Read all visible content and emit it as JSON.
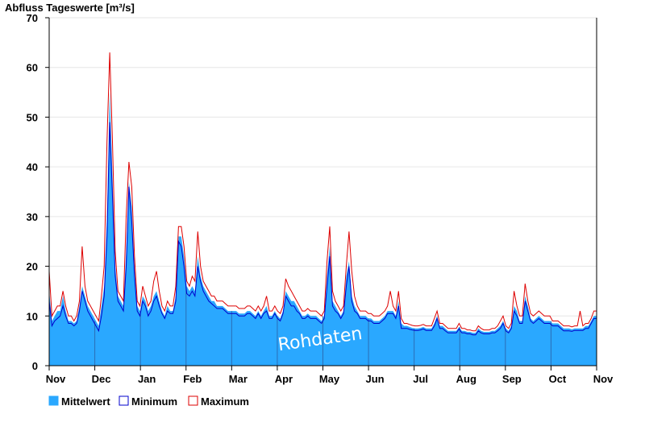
{
  "chart_data": {
    "type": "area",
    "title": "Abfluss Tageswerte [m³/s]",
    "watermark": "Rohdaten",
    "ylim": [
      0,
      70
    ],
    "yticks": [
      0,
      10,
      20,
      30,
      40,
      50,
      60,
      70
    ],
    "grid": true,
    "legend_placement": "bottom-left",
    "x_start": "Nov 1",
    "x_end": "Nov 1",
    "months": [
      "Nov",
      "Dec",
      "Jan",
      "Feb",
      "Mar",
      "Apr",
      "May",
      "Jun",
      "Jul",
      "Aug",
      "Sep",
      "Oct",
      "Nov"
    ],
    "colors": {
      "mittelwert": "#2aa8ff",
      "minimum": "#0000cc",
      "maximum": "#dd0000",
      "grid": "#e6e6e6"
    },
    "series": [
      {
        "name": "Mittelwert",
        "values": [
          15,
          9,
          10,
          11,
          11,
          14,
          11,
          9,
          9,
          8.5,
          9,
          12,
          16,
          14,
          12,
          11,
          10,
          9,
          8,
          12,
          16,
          30,
          55,
          38,
          20,
          14,
          13,
          12,
          23,
          37,
          32,
          20,
          12,
          11,
          14,
          13,
          11,
          12,
          14,
          15,
          13,
          11,
          10,
          12,
          11,
          11,
          14,
          26,
          26,
          22,
          16,
          15,
          16,
          15,
          22,
          18,
          16,
          15,
          14,
          13,
          13,
          12,
          12,
          12,
          11.5,
          11,
          11,
          11,
          11,
          10.5,
          10.5,
          10.5,
          11,
          11,
          10.5,
          10,
          11,
          10,
          11,
          12,
          10,
          10,
          11,
          10,
          9.5,
          11,
          15,
          14,
          13,
          13,
          12,
          11,
          10,
          10,
          10.5,
          10,
          10,
          10,
          9.5,
          9,
          10,
          18,
          24,
          13,
          12,
          11,
          10,
          11,
          18,
          21,
          14,
          12,
          11,
          10,
          10,
          10,
          9.5,
          9.5,
          9,
          9,
          9,
          9.5,
          10,
          11,
          11,
          11,
          10,
          13,
          8.5,
          8,
          8,
          7.8,
          7.6,
          7.5,
          7.5,
          7.6,
          7.8,
          7.5,
          7.5,
          7.5,
          8.5,
          10,
          8,
          8,
          7.5,
          7,
          7,
          7,
          7,
          7.8,
          7,
          7,
          6.8,
          6.8,
          6.6,
          6.6,
          7.5,
          7,
          6.8,
          6.8,
          6.8,
          7,
          7,
          7.5,
          8,
          9,
          7.5,
          7,
          8,
          12,
          11,
          9,
          9,
          14,
          12,
          9.5,
          9,
          9.5,
          10,
          9.5,
          9,
          9,
          9,
          8.5,
          8.5,
          8.5,
          8,
          7.5,
          7.5,
          7.5,
          7.3,
          7.5,
          7.5,
          7.5,
          7.5,
          8,
          8,
          9,
          10,
          10
        ]
      },
      {
        "name": "Minimum",
        "values": [
          13,
          8,
          9,
          9.5,
          10,
          12,
          10,
          8.5,
          8.5,
          8,
          8.5,
          11,
          15,
          13,
          11,
          10,
          9,
          8,
          7,
          10,
          14,
          26,
          49,
          34,
          18,
          13,
          12,
          11,
          20,
          36,
          29,
          18,
          11,
          10,
          13,
          12,
          10,
          11,
          13,
          14,
          12,
          10.5,
          9.5,
          11,
          10.5,
          10.5,
          13,
          25,
          24,
          20,
          14.5,
          14,
          15,
          14,
          20,
          17,
          15,
          14,
          13,
          12.5,
          12,
          11.5,
          11.5,
          11.5,
          11,
          10.5,
          10.5,
          10.5,
          10.5,
          10,
          10,
          10,
          10.5,
          10.5,
          10,
          9.5,
          10.5,
          9.5,
          10.5,
          11,
          9.5,
          9.5,
          10.5,
          9.5,
          9,
          10.5,
          14,
          13,
          12,
          12,
          11,
          10.5,
          9.5,
          9.5,
          10,
          9.5,
          9.5,
          9.5,
          9,
          8.5,
          9.5,
          16,
          22,
          12,
          11,
          10.5,
          9.5,
          10.5,
          16,
          20,
          13,
          11,
          10.5,
          9.5,
          9.5,
          9.5,
          9,
          9,
          8.5,
          8.5,
          8.5,
          9,
          9.5,
          10.5,
          10.5,
          10.5,
          9.5,
          12,
          7.5,
          7.5,
          7.5,
          7.3,
          7.2,
          7.1,
          7.1,
          7.2,
          7.4,
          7.1,
          7.1,
          7.1,
          8,
          9.5,
          7.5,
          7.5,
          7,
          6.6,
          6.6,
          6.6,
          6.6,
          7.4,
          6.6,
          6.6,
          6.4,
          6.4,
          6.2,
          6.2,
          7,
          6.6,
          6.4,
          6.4,
          6.4,
          6.6,
          6.6,
          7,
          7.5,
          8.5,
          7,
          6.6,
          7.5,
          11,
          10,
          8.5,
          8.5,
          13,
          11,
          9,
          8.5,
          9,
          9.5,
          9,
          8.5,
          8.5,
          8.5,
          8,
          8,
          8,
          7.5,
          7,
          7,
          7,
          6.9,
          7.1,
          7.1,
          7.1,
          7.1,
          7.5,
          7.5,
          8.5,
          9.5,
          9.5
        ]
      },
      {
        "name": "Maximum",
        "values": [
          19,
          10,
          11,
          12,
          12,
          15,
          12,
          10,
          10,
          9,
          10,
          13,
          24,
          16,
          13,
          12,
          11,
          10,
          9,
          14,
          20,
          45,
          63,
          45,
          23,
          15,
          14,
          13,
          30,
          41,
          36,
          22,
          13,
          12,
          16,
          14,
          12,
          13,
          17,
          19,
          15,
          12,
          11,
          13,
          12,
          12,
          16,
          28,
          28,
          24,
          17,
          16,
          18,
          17,
          27,
          20,
          17,
          16,
          15,
          14,
          14,
          13,
          13,
          13,
          12.5,
          12,
          12,
          12,
          12,
          11.5,
          11.5,
          11.5,
          12,
          12,
          11.5,
          11,
          12,
          11,
          12,
          14,
          11,
          11,
          12,
          11,
          10.5,
          12,
          17.5,
          16,
          15,
          14,
          13,
          12,
          11,
          11,
          11.5,
          11,
          11,
          11,
          10.5,
          10,
          11,
          21,
          28,
          15,
          13,
          12,
          11,
          12,
          20,
          27,
          19,
          14,
          12,
          11,
          11,
          11,
          10.5,
          10.5,
          10,
          10,
          10,
          10.5,
          11,
          12,
          15,
          12,
          11,
          15,
          9.5,
          8.5,
          8.5,
          8.3,
          8.1,
          8,
          8,
          8.1,
          8.3,
          8,
          8,
          8,
          9.5,
          11,
          8.5,
          8.5,
          8,
          7.5,
          7.5,
          7.5,
          7.5,
          8.5,
          7.5,
          7.5,
          7.2,
          7.2,
          7,
          7,
          8,
          7.5,
          7.2,
          7.2,
          7.2,
          7.5,
          7.5,
          8,
          9,
          10,
          8,
          7.5,
          8.5,
          15,
          12,
          10,
          10,
          16.5,
          13,
          10.5,
          10,
          10.5,
          11,
          10.5,
          10,
          10,
          10,
          9,
          9,
          9,
          8.5,
          8,
          8,
          8,
          7.8,
          8,
          8,
          11,
          8,
          8.5,
          8.5,
          9.5,
          11,
          11
        ]
      }
    ],
    "legend": [
      {
        "key": "mittelwert",
        "label": "Mittelwert"
      },
      {
        "key": "minimum",
        "label": "Minimum"
      },
      {
        "key": "maximum",
        "label": "Maximum"
      }
    ]
  }
}
